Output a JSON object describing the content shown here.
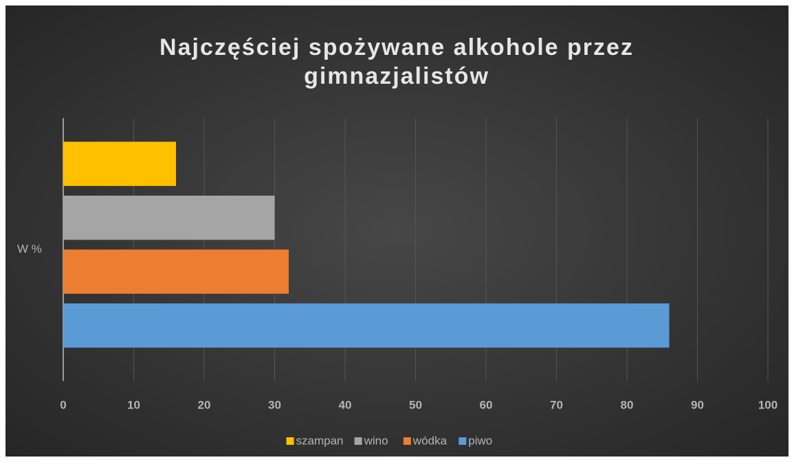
{
  "chart_data": {
    "type": "bar",
    "orientation": "horizontal",
    "title": "Najczęściej spożywane alkohole przez gimnazjalistów",
    "categories": [
      "W %"
    ],
    "series": [
      {
        "name": "szampan",
        "color": "#ffc000",
        "values": [
          16
        ]
      },
      {
        "name": "wino",
        "color": "#a5a5a5",
        "values": [
          30
        ]
      },
      {
        "name": "wódka",
        "color": "#ed7d31",
        "values": [
          32
        ]
      },
      {
        "name": "piwo",
        "color": "#5b9bd5",
        "values": [
          86
        ]
      }
    ],
    "xlim": [
      0,
      100
    ],
    "xticks": [
      0,
      10,
      20,
      30,
      40,
      50,
      60,
      70,
      80,
      90,
      100
    ],
    "grid": true,
    "legend": "bottom"
  }
}
